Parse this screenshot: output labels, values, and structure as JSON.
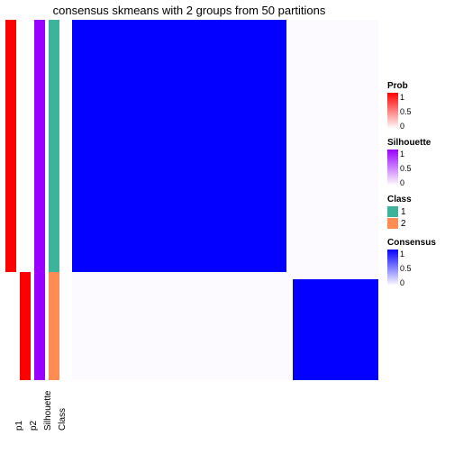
{
  "title": "consensus skmeans with 2 groups from 50 partitions",
  "annotation_height": 400,
  "annotations": [
    {
      "name": "p1",
      "segments": [
        {
          "frac": 0.7,
          "color": "#ff0000"
        },
        {
          "frac": 0.3,
          "color": "#ffffff"
        }
      ]
    },
    {
      "name": "p2",
      "segments": [
        {
          "frac": 0.7,
          "color": "#ffffff"
        },
        {
          "frac": 0.3,
          "color": "#ff0000"
        }
      ]
    },
    {
      "name": "Silhouette",
      "segments": [
        {
          "frac": 1.0,
          "color": "#9900ff"
        }
      ]
    },
    {
      "name": "Class",
      "segments": [
        {
          "frac": 0.7,
          "color": "#3cb49c"
        },
        {
          "frac": 0.3,
          "color": "#ff8c53"
        }
      ]
    }
  ],
  "heatmap": {
    "rows": 5,
    "cols": 5,
    "row_fracs": [
      0.22,
      0.48,
      0.02,
      0.15,
      0.13
    ],
    "col_fracs": [
      0.22,
      0.48,
      0.02,
      0.15,
      0.13
    ],
    "colors": {
      "high": "#0400ff",
      "low": "#fcfaff",
      "white": "#ffffff"
    },
    "matrix": [
      [
        "high",
        "high",
        "low",
        "low",
        "low"
      ],
      [
        "high",
        "high",
        "low",
        "low",
        "low"
      ],
      [
        "low",
        "low",
        "low",
        "low",
        "low"
      ],
      [
        "low",
        "low",
        "low",
        "high",
        "high"
      ],
      [
        "low",
        "low",
        "low",
        "high",
        "high"
      ]
    ]
  },
  "legends": {
    "prob": {
      "title": "Prob",
      "gradient": [
        "#ffffff",
        "#ff0000"
      ],
      "ticks": [
        {
          "pos": 0.0,
          "label": "1"
        },
        {
          "pos": 0.5,
          "label": "0.5"
        },
        {
          "pos": 1.0,
          "label": "0"
        }
      ]
    },
    "silhouette": {
      "title": "Silhouette",
      "gradient": [
        "#ffffff",
        "#9900ff"
      ],
      "ticks": [
        {
          "pos": 0.0,
          "label": "1"
        },
        {
          "pos": 0.5,
          "label": "0.5"
        },
        {
          "pos": 1.0,
          "label": "0"
        }
      ]
    },
    "class": {
      "title": "Class",
      "items": [
        {
          "color": "#3cb49c",
          "label": "1"
        },
        {
          "color": "#ff8c53",
          "label": "2"
        }
      ]
    },
    "consensus": {
      "title": "Consensus",
      "gradient": [
        "#ffffff",
        "#0400ff"
      ],
      "ticks": [
        {
          "pos": 0.0,
          "label": "1"
        },
        {
          "pos": 0.5,
          "label": "0.5"
        },
        {
          "pos": 1.0,
          "label": "0"
        }
      ]
    }
  }
}
